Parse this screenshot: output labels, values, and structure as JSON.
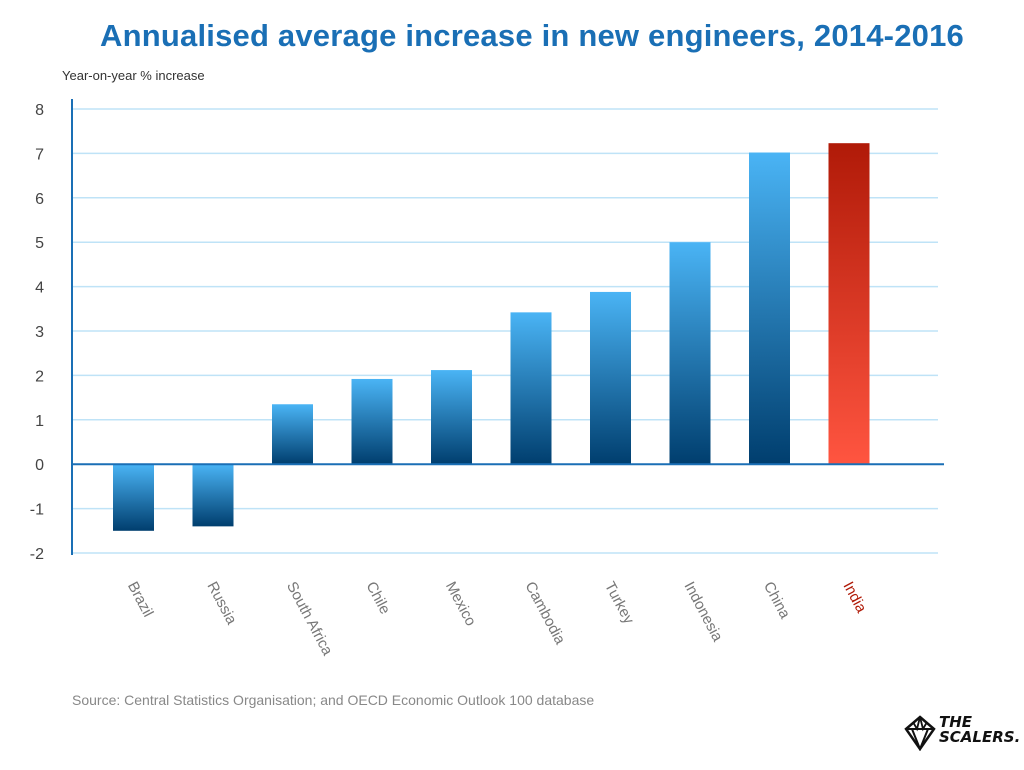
{
  "title": "Annualised average increase in new engineers, 2014-2016",
  "source": "Source: Central Statistics Organisation; and OECD Economic Outlook 100 database",
  "logo": {
    "line1": "THE",
    "line2": "SCALERS."
  },
  "colors": {
    "bar_top": "#4ab4f5",
    "bar_bottom": "#003e6e",
    "highlight_top": "#b01a08",
    "highlight_bottom": "#ff5540",
    "highlight_label": "#b01a08",
    "grid": "#bfe3f7",
    "axis": "#1a6fb5",
    "title": "#1a6fb5"
  },
  "chart_data": {
    "type": "bar",
    "title": "Annualised average increase in new engineers, 2014-2016",
    "ylabel": "Year-on-year % increase",
    "xlabel": "",
    "ylim": [
      -2,
      8
    ],
    "yticks": [
      8,
      7,
      6,
      5,
      4,
      3,
      2,
      1,
      0,
      -1,
      -2
    ],
    "grid": true,
    "categories": [
      "Brazil",
      "Russia",
      "South Africa",
      "Chile",
      "Mexico",
      "Cambodia",
      "Turkey",
      "Indonesia",
      "China",
      "India"
    ],
    "values": [
      -1.5,
      -1.4,
      1.35,
      1.92,
      2.12,
      3.42,
      3.88,
      5.0,
      7.02,
      7.23
    ],
    "highlight": "India"
  }
}
